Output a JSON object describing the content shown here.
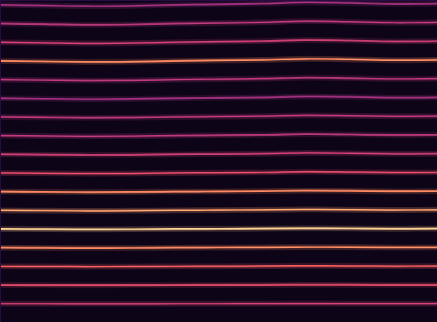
{
  "chart_data": {
    "type": "line",
    "tick_labels": false,
    "grid": false,
    "xlim": [
      0,
      100
    ],
    "ylim": [
      0,
      400
    ],
    "zlim": [
      0,
      1
    ],
    "x": [
      0,
      10,
      20,
      30,
      40,
      50,
      60,
      70,
      80,
      90,
      100
    ],
    "series": [
      {
        "intensity": 0.55,
        "values": [
          23.2,
          23.2,
          23.1,
          23.1,
          23.2,
          23.2,
          23.3,
          23.4,
          23.3,
          23.3,
          23.3
        ]
      },
      {
        "intensity": 0.6,
        "values": [
          46.4,
          46.3,
          46.2,
          46.3,
          46.4,
          46.5,
          46.6,
          46.8,
          46.7,
          46.5,
          46.6
        ]
      },
      {
        "intensity": 0.65,
        "values": [
          69.6,
          69.5,
          69.3,
          69.4,
          69.6,
          69.7,
          69.9,
          70.2,
          70.0,
          69.8,
          69.9
        ]
      },
      {
        "intensity": 0.75,
        "values": [
          92.8,
          92.6,
          92.4,
          92.5,
          92.8,
          93.0,
          93.2,
          93.5,
          93.4,
          93.1,
          93.2
        ]
      },
      {
        "intensity": 0.9,
        "values": [
          116,
          115.8,
          115.5,
          115.7,
          116,
          116.2,
          116.5,
          116.9,
          116.7,
          116.3,
          116.5
        ]
      },
      {
        "intensity": 0.8,
        "values": [
          139.2,
          138.9,
          138.6,
          138.8,
          139.2,
          139.5,
          139.8,
          140.3,
          140.0,
          139.6,
          139.8
        ]
      },
      {
        "intensity": 0.75,
        "values": [
          162.4,
          162.1,
          161.8,
          161.9,
          162.4,
          162.7,
          163.1,
          163.7,
          163.4,
          162.9,
          163.1
        ]
      },
      {
        "intensity": 0.6,
        "values": [
          185.6,
          185.2,
          184.9,
          185.0,
          185.6,
          186.0,
          186.3,
          187.1,
          186.7,
          186.2,
          186.3
        ]
      },
      {
        "intensity": 0.55,
        "values": [
          208.8,
          208.4,
          208.0,
          208.2,
          208.8,
          209.2,
          209.6,
          210.5,
          210.1,
          209.4,
          209.6
        ]
      },
      {
        "intensity": 0.5,
        "values": [
          232,
          231.5,
          231.1,
          231.3,
          232,
          232.5,
          232.9,
          233.9,
          233.4,
          232.7,
          232.9
        ]
      },
      {
        "intensity": 0.5,
        "values": [
          255.2,
          254.7,
          254.2,
          254.4,
          255.2,
          255.7,
          256.2,
          257.2,
          256.7,
          256.0,
          256.2
        ]
      },
      {
        "intensity": 0.45,
        "values": [
          278.4,
          277.8,
          277.3,
          277.6,
          278.4,
          279.0,
          279.5,
          280.6,
          280.1,
          279.2,
          279.5
        ]
      },
      {
        "intensity": 0.5,
        "values": [
          301.6,
          301.0,
          300.4,
          300.7,
          301.6,
          302.2,
          302.8,
          304.0,
          303.4,
          302.5,
          302.8
        ]
      },
      {
        "intensity": 0.75,
        "values": [
          324.8,
          324.2,
          323.5,
          323.8,
          324.8,
          325.5,
          326.1,
          327.4,
          326.8,
          325.8,
          326.1
        ]
      },
      {
        "intensity": 0.55,
        "values": [
          348,
          347.3,
          346.6,
          347.0,
          348,
          348.7,
          349.4,
          350.8,
          350.1,
          349.0,
          349.4
        ]
      },
      {
        "intensity": 0.5,
        "values": [
          371.2,
          370.5,
          369.7,
          370.1,
          371.2,
          371.9,
          372.7,
          374.2,
          373.4,
          372.3,
          372.7
        ]
      },
      {
        "intensity": 0.45,
        "values": [
          394.4,
          393.6,
          392.8,
          393.2,
          394.4,
          395.2,
          396.0,
          397.6,
          396.8,
          395.6,
          396.0
        ]
      }
    ]
  }
}
